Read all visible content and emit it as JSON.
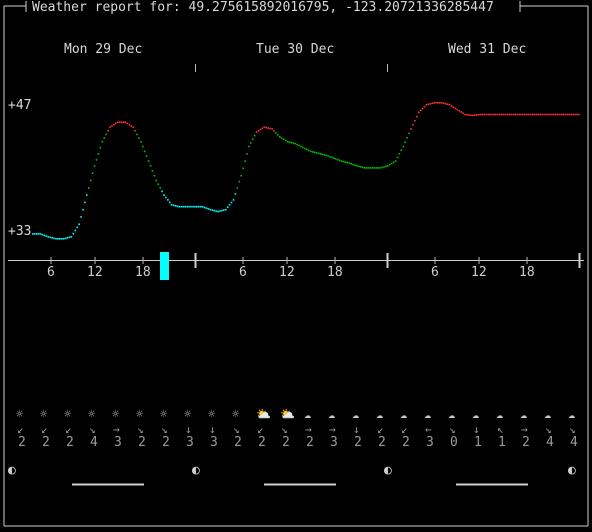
{
  "title": "Weather report for: 49.275615892016795, -123.20721336285447",
  "days": [
    "Mon 29 Dec",
    "Tue 30 Dec",
    "Wed 31 Dec"
  ],
  "y_labels": {
    "max": "+47",
    "min": "+33"
  },
  "hour_ticks": [
    "6",
    "12",
    "18",
    "6",
    "12",
    "18",
    "6",
    "12",
    "18"
  ],
  "current_marker_color": "#00ffff",
  "chart_data": {
    "type": "line",
    "title": "",
    "xlabel": "",
    "ylabel": "",
    "ylim": [
      33,
      47
    ],
    "x_hours": [
      0,
      1,
      2,
      3,
      4,
      5,
      6,
      7,
      8,
      9,
      10,
      11,
      12,
      13,
      14,
      15,
      16,
      17,
      18,
      19,
      20,
      21,
      22,
      23,
      24,
      25,
      26,
      27,
      28,
      29,
      30,
      31,
      32,
      33,
      34,
      35,
      36,
      37,
      38,
      39,
      40,
      41,
      42,
      43,
      44,
      45,
      46,
      47,
      48,
      49,
      50,
      51,
      52,
      53,
      54,
      55,
      56,
      57,
      58,
      59,
      60,
      61,
      62,
      63,
      64,
      65,
      66,
      67,
      68,
      69,
      70,
      71
    ],
    "values": [
      33.5,
      33.5,
      33.2,
      33.0,
      33.0,
      33.2,
      34.5,
      37.5,
      40.5,
      43.0,
      44.5,
      45.0,
      45.0,
      44.5,
      43.0,
      41.0,
      39.0,
      37.5,
      36.5,
      36.3,
      36.3,
      36.3,
      36.3,
      36.0,
      35.8,
      36.0,
      37.0,
      39.5,
      42.5,
      44.0,
      44.5,
      44.3,
      43.5,
      43.0,
      42.8,
      42.4,
      42.0,
      41.8,
      41.6,
      41.3,
      41.0,
      40.8,
      40.5,
      40.3,
      40.3,
      40.3,
      40.5,
      41.0,
      42.5,
      44.3,
      46.0,
      46.8,
      47.0,
      47.0,
      46.8,
      46.3,
      45.8,
      45.7,
      45.8,
      45.8,
      45.8,
      45.8,
      45.8,
      45.8,
      45.8,
      45.8,
      45.8,
      45.8,
      45.8,
      45.8,
      45.8,
      45.8
    ],
    "color_scale": {
      "cold": "#00ffff",
      "mild": "#00c000",
      "warm": "#ff3030"
    }
  },
  "conditions": [
    {
      "icon": "sun",
      "arrow": "↙",
      "speed": "2"
    },
    {
      "icon": "sun",
      "arrow": "↙",
      "speed": "2"
    },
    {
      "icon": "sun",
      "arrow": "↙",
      "speed": "2"
    },
    {
      "icon": "sun",
      "arrow": "↘",
      "speed": "4"
    },
    {
      "icon": "sun",
      "arrow": "→",
      "speed": "3"
    },
    {
      "icon": "sun",
      "arrow": "↘",
      "speed": "2"
    },
    {
      "icon": "sun",
      "arrow": "↘",
      "speed": "2"
    },
    {
      "icon": "sun",
      "arrow": "↓",
      "speed": "3"
    },
    {
      "icon": "sun",
      "arrow": "↓",
      "speed": "3"
    },
    {
      "icon": "sun",
      "arrow": "↘",
      "speed": "2"
    },
    {
      "icon": "cloud-sun",
      "arrow": "↙",
      "speed": "2"
    },
    {
      "icon": "cloud-sun",
      "arrow": "↘",
      "speed": "2"
    },
    {
      "icon": "cloud",
      "arrow": "→",
      "speed": "2"
    },
    {
      "icon": "cloud",
      "arrow": "→",
      "speed": "3"
    },
    {
      "icon": "cloud",
      "arrow": "↓",
      "speed": "2"
    },
    {
      "icon": "cloud",
      "arrow": "↙",
      "speed": "2"
    },
    {
      "icon": "cloud",
      "arrow": "↙",
      "speed": "2"
    },
    {
      "icon": "cloud",
      "arrow": "←",
      "speed": "3"
    },
    {
      "icon": "cloud",
      "arrow": "↘",
      "speed": "0"
    },
    {
      "icon": "cloud",
      "arrow": "↓",
      "speed": "1"
    },
    {
      "icon": "cloud",
      "arrow": "↖",
      "speed": "1"
    },
    {
      "icon": "cloud",
      "arrow": "→",
      "speed": "2"
    },
    {
      "icon": "cloud",
      "arrow": "↘",
      "speed": "4"
    },
    {
      "icon": "cloud",
      "arrow": "↘",
      "speed": "4"
    }
  ],
  "moon_phase": "◐"
}
